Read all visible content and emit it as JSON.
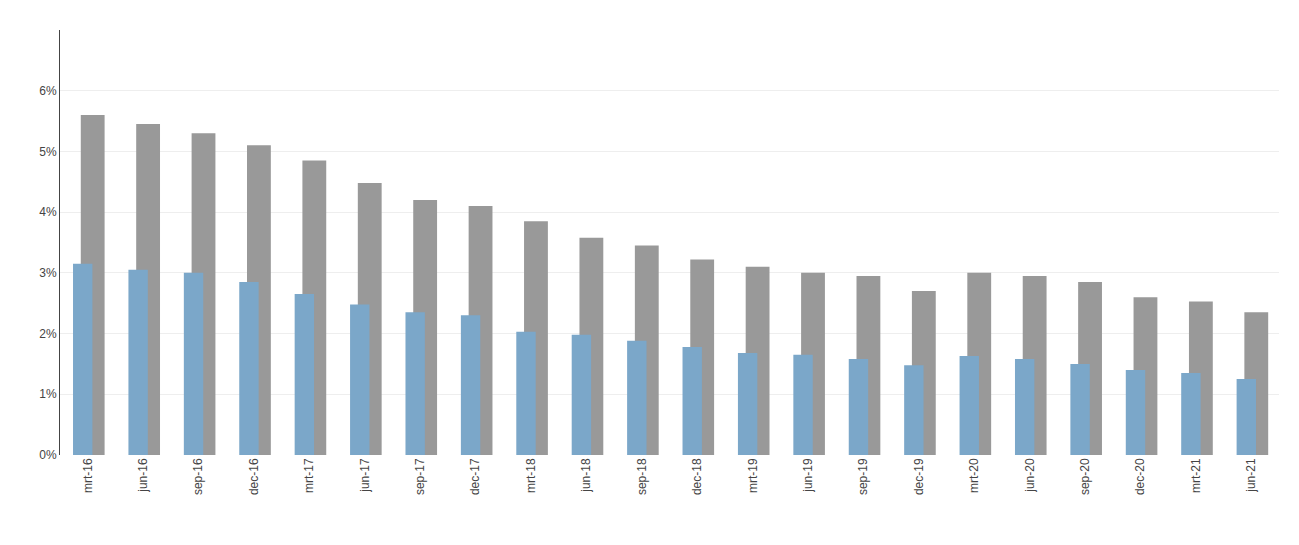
{
  "chart_data": {
    "type": "bar",
    "categories": [
      "mrt-16",
      "jun-16",
      "sep-16",
      "dec-16",
      "mrt-17",
      "jun-17",
      "sep-17",
      "dec-17",
      "mrt-18",
      "jun-18",
      "sep-18",
      "dec-18",
      "mrt-19",
      "jun-19",
      "sep-19",
      "dec-19",
      "mrt-20",
      "jun-20",
      "sep-20",
      "dec-20",
      "mrt-21",
      "jun-21"
    ],
    "series": [
      {
        "color": "#999999",
        "values": [
          0.056,
          0.0545,
          0.053,
          0.051,
          0.0485,
          0.0448,
          0.042,
          0.041,
          0.0385,
          0.0358,
          0.0345,
          0.0322,
          0.031,
          0.03,
          0.0295,
          0.027,
          0.03,
          0.0295,
          0.0285,
          0.026,
          0.0253,
          0.0235
        ]
      },
      {
        "color": "#7BA7C9",
        "values": [
          0.0315,
          0.0305,
          0.03,
          0.0285,
          0.0265,
          0.0248,
          0.0235,
          0.023,
          0.0203,
          0.0198,
          0.0188,
          0.0178,
          0.0168,
          0.0165,
          0.0158,
          0.0148,
          0.0163,
          0.0158,
          0.015,
          0.014,
          0.0135,
          0.0125
        ]
      }
    ],
    "ylim": [
      0,
      0.07
    ],
    "yticks": [
      {
        "value": 0,
        "label": "0%"
      },
      {
        "value": 0.01,
        "label": "1%"
      },
      {
        "value": 0.02,
        "label": "2%"
      },
      {
        "value": 0.03,
        "label": "3%"
      },
      {
        "value": 0.04,
        "label": "4%"
      },
      {
        "value": 0.05,
        "label": "5%"
      },
      {
        "value": 0.06,
        "label": "6%"
      }
    ],
    "grid": true
  }
}
